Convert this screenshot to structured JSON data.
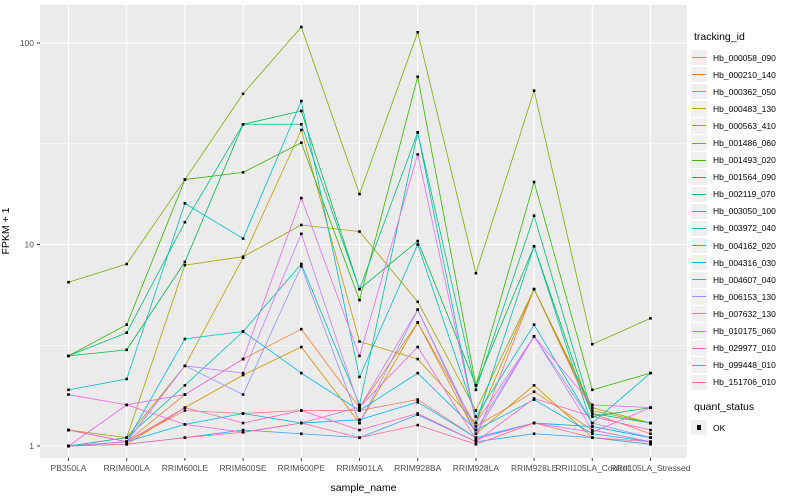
{
  "chart_data": {
    "type": "line",
    "title": "",
    "xlabel": "sample_name",
    "ylabel": "FPKM + 1",
    "y_scale": "log10",
    "ylim": [
      0.87,
      152
    ],
    "y_ticks": [
      1,
      10,
      100
    ],
    "grid": true,
    "legend_position": "right",
    "panel_bg": "#EBEBEB",
    "grid_color": "#FFFFFF",
    "tick_color": "#333333",
    "tick_label_color": "#4D4D4D",
    "point": {
      "shape": "filled-square",
      "color": "#000000",
      "size": 2.6
    },
    "categories": [
      "PB350LA",
      "RRIM600LA",
      "RRIM600LE",
      "RRIM600SE",
      "RRIM600PE",
      "RRIM901LA",
      "RRIM928BA",
      "RRIM928LA",
      "RRIM928LE",
      "RRII105LA_Control",
      "RRII105LA_Stressed"
    ],
    "series": [
      {
        "name": "Hb_000058_090",
        "color": "#F8766D",
        "values": [
          1.2,
          1.05,
          1.5,
          1.45,
          1.5,
          1.5,
          1.7,
          1.1,
          6.0,
          1.45,
          1.15
        ]
      },
      {
        "name": "Hb_000210_140",
        "color": "#EA8331",
        "values": [
          1.0,
          1.05,
          1.8,
          2.7,
          3.8,
          1.55,
          4.1,
          1.25,
          1.86,
          1.2,
          1.05
        ]
      },
      {
        "name": "Hb_000362_050",
        "color": "#D89000",
        "values": [
          1.0,
          1.02,
          1.55,
          2.25,
          3.1,
          1.3,
          4.1,
          1.15,
          2.0,
          1.1,
          1.02
        ]
      },
      {
        "name": "Hb_000483_130",
        "color": "#C09B00",
        "values": [
          1.0,
          1.1,
          2.5,
          8.6,
          37.0,
          3.3,
          2.7,
          1.3,
          6.0,
          1.5,
          1.3
        ]
      },
      {
        "name": "Hb_000563_410",
        "color": "#A3A500",
        "values": [
          1.2,
          1.1,
          7.9,
          8.7,
          12.5,
          11.6,
          5.2,
          1.5,
          6.0,
          1.55,
          1.3
        ]
      },
      {
        "name": "Hb_001486_060",
        "color": "#7CAE00",
        "values": [
          6.5,
          8.0,
          21.0,
          56.0,
          120.0,
          17.8,
          113.0,
          7.2,
          58.0,
          3.2,
          4.3
        ]
      },
      {
        "name": "Hb_001493_020",
        "color": "#39B600",
        "values": [
          2.8,
          4.0,
          21.0,
          22.8,
          32.0,
          5.3,
          68.0,
          2.0,
          20.4,
          1.9,
          2.3
        ]
      },
      {
        "name": "Hb_001564_090",
        "color": "#00BB4E",
        "values": [
          2.8,
          3.0,
          8.2,
          39.5,
          46.0,
          6.0,
          10.4,
          2.0,
          9.8,
          1.4,
          1.55
        ]
      },
      {
        "name": "Hb_002119_070",
        "color": "#00C081",
        "values": [
          2.8,
          3.65,
          12.9,
          39.5,
          39.5,
          6.0,
          36.0,
          1.9,
          13.9,
          1.45,
          1.3
        ]
      },
      {
        "name": "Hb_003050_100",
        "color": "#00C0AF",
        "values": [
          1.0,
          1.1,
          2.0,
          3.7,
          8.0,
          1.6,
          36.0,
          1.3,
          9.8,
          1.25,
          1.1
        ]
      },
      {
        "name": "Hb_003972_040",
        "color": "#00BFC4",
        "values": [
          1.9,
          2.15,
          16.0,
          10.7,
          51.5,
          2.2,
          10.0,
          1.4,
          4.0,
          1.3,
          2.3
        ]
      },
      {
        "name": "Hb_004162_020",
        "color": "#00BAE0",
        "values": [
          1.0,
          1.05,
          3.4,
          3.7,
          2.3,
          1.5,
          2.3,
          1.2,
          1.7,
          1.15,
          1.05
        ]
      },
      {
        "name": "Hb_004316_030",
        "color": "#00B0F6",
        "values": [
          1.0,
          1.05,
          1.28,
          1.45,
          1.3,
          1.35,
          1.65,
          1.1,
          1.3,
          1.25,
          1.1
        ]
      },
      {
        "name": "Hb_004607_040",
        "color": "#35A2FF",
        "values": [
          1.0,
          1.02,
          1.1,
          1.2,
          1.15,
          1.1,
          1.43,
          1.05,
          1.15,
          1.1,
          1.02
        ]
      },
      {
        "name": "Hb_006153_130",
        "color": "#9590FF",
        "values": [
          1.0,
          1.05,
          2.5,
          1.8,
          7.8,
          1.3,
          4.75,
          1.2,
          3.5,
          1.3,
          1.1
        ]
      },
      {
        "name": "Hb_007632_130",
        "color": "#C77CFF",
        "values": [
          1.0,
          1.05,
          2.5,
          2.3,
          11.3,
          1.55,
          4.75,
          1.15,
          3.5,
          1.2,
          1.05
        ]
      },
      {
        "name": "Hb_010175_060",
        "color": "#E76BF3",
        "values": [
          1.0,
          1.6,
          1.8,
          2.7,
          17.0,
          2.8,
          28.0,
          1.3,
          3.5,
          1.6,
          1.55
        ]
      },
      {
        "name": "Hb_029977_010",
        "color": "#FA62DB",
        "values": [
          1.8,
          1.6,
          1.28,
          1.17,
          1.3,
          1.56,
          3.1,
          1.08,
          1.3,
          1.17,
          1.55
        ]
      },
      {
        "name": "Hb_099448_010",
        "color": "#FF62BC",
        "values": [
          1.2,
          1.05,
          1.55,
          1.3,
          1.5,
          1.2,
          1.45,
          1.05,
          1.72,
          1.4,
          1.2
        ]
      },
      {
        "name": "Hb_151706_010",
        "color": "#FF6A98",
        "values": [
          1.0,
          1.02,
          1.1,
          1.17,
          1.3,
          1.1,
          1.27,
          1.02,
          1.3,
          1.1,
          1.05
        ]
      }
    ],
    "legend": {
      "color_title": "tracking_id",
      "shape_title": "quant_status",
      "shape_items": [
        {
          "label": "OK",
          "shape": "filled-square",
          "color": "#000000"
        }
      ]
    }
  }
}
